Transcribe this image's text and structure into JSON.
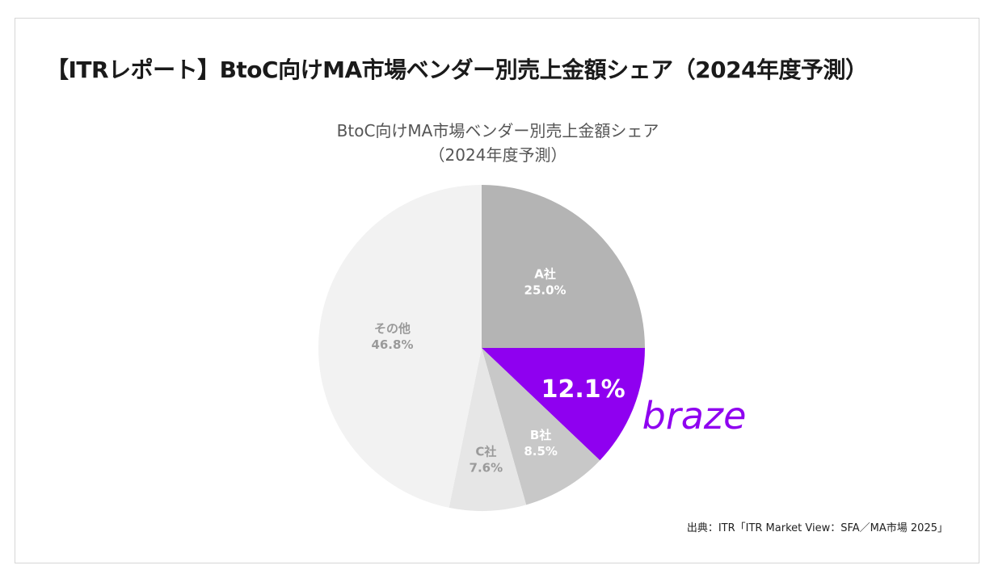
{
  "header": {
    "title": "【ITRレポート】BtoC向けMA市場ベンダー別売上金額シェア（2024年度予測）"
  },
  "chart_data": {
    "type": "pie",
    "title_line1": "BtoC向けMA市場ベンダー別売上金額シェア",
    "title_line2": "（2024年度予測）",
    "slices": [
      {
        "name": "A社",
        "value": 25.0,
        "label": "25.0%",
        "color": "#b4b4b4",
        "label_color": "#ffffff"
      },
      {
        "name": "",
        "value": 12.1,
        "label": "12.1%",
        "color": "#8f00f0",
        "label_color": "#ffffff"
      },
      {
        "name": "B社",
        "value": 8.5,
        "label": "8.5%",
        "color": "#c8c8c8",
        "label_color": "#ffffff"
      },
      {
        "name": "C社",
        "value": 7.6,
        "label": "7.6%",
        "color": "#e6e6e6",
        "label_color": "#9a9a9a"
      },
      {
        "name": "その他",
        "value": 46.8,
        "label": "46.8%",
        "color": "#f2f2f2",
        "label_color": "#9a9a9a"
      }
    ],
    "start": "12 o'clock",
    "direction": "clockwise",
    "annotation": {
      "text": "braze",
      "color": "#8f00f0"
    }
  },
  "footer": {
    "source": "出典：ITR「ITR Market View：SFA／MA市場 2025」"
  }
}
